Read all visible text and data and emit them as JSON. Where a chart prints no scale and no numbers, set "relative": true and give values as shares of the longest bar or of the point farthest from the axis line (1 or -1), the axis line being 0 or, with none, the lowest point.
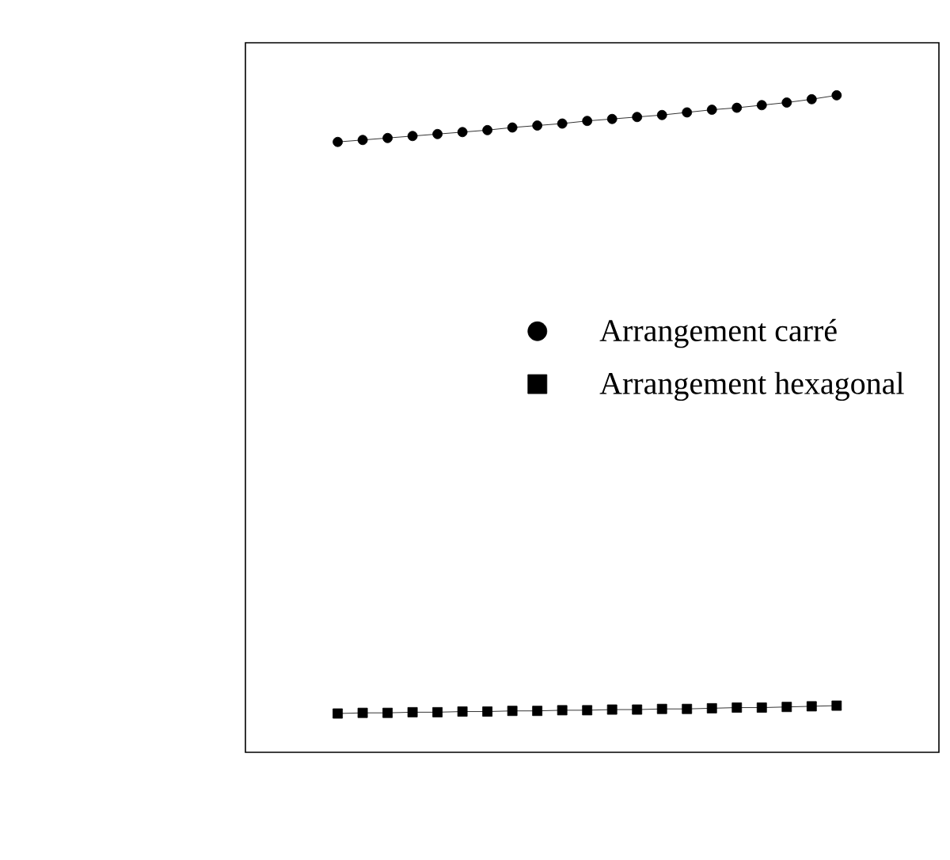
{
  "chart_data": {
    "type": "line",
    "relative": true,
    "categories": [
      null,
      null,
      null,
      null,
      null,
      null,
      null,
      null,
      null,
      null,
      null,
      null,
      null,
      null,
      null,
      null,
      null,
      null,
      null,
      null,
      null
    ],
    "series": [
      {
        "name": "Arrangement carré",
        "color": "#000000",
        "marker": "circle",
        "values": [
          0.929,
          0.932,
          0.935,
          0.938,
          0.941,
          0.944,
          0.947,
          0.951,
          0.954,
          0.957,
          0.961,
          0.964,
          0.967,
          0.97,
          0.974,
          0.978,
          0.981,
          0.985,
          0.989,
          0.994,
          1.0
        ]
      },
      {
        "name": "Arrangement hexagonal",
        "color": "#000000",
        "marker": "square",
        "values": [
          0.059,
          0.06,
          0.06,
          0.061,
          0.061,
          0.062,
          0.062,
          0.063,
          0.063,
          0.064,
          0.064,
          0.065,
          0.065,
          0.066,
          0.066,
          0.067,
          0.068,
          0.068,
          0.069,
          0.07,
          0.071
        ]
      }
    ],
    "line_style": "solid",
    "legend": "right"
  }
}
